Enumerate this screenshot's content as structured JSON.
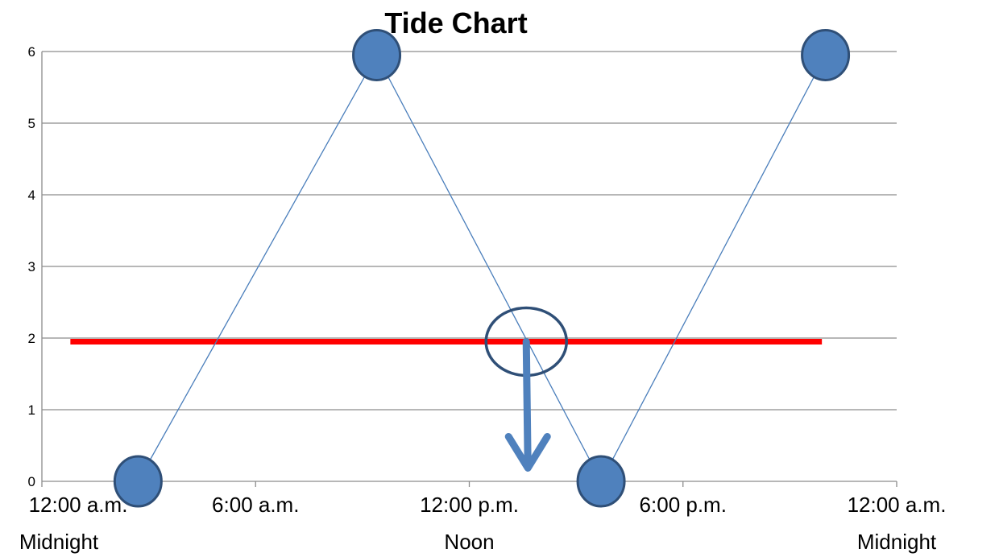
{
  "chart_data": {
    "type": "line",
    "title": "Tide Chart",
    "xlabel": "",
    "ylabel": "",
    "ylim": [
      0,
      6
    ],
    "yticks": [
      "0",
      "1",
      "2",
      "3",
      "4",
      "5",
      "6"
    ],
    "xlim_hours": [
      0,
      24
    ],
    "x_tick_labels": [
      "12:00 a.m.",
      "6:00 a.m.",
      "12:00 p.m.",
      "6:00 p.m.",
      "12:00 a.m."
    ],
    "x_tick_sublabels": [
      "Midnight",
      "",
      "Noon",
      "",
      "Midnight"
    ],
    "grid": true,
    "series": [
      {
        "x_hours": [
          2.7,
          9.4,
          15.7,
          22.0
        ],
        "values": [
          0,
          5.95,
          0,
          5.95
        ],
        "color": "#4f81bd"
      }
    ],
    "threshold": {
      "value": 1.95,
      "x_start_hours": 0.8,
      "x_end_hours": 21.9,
      "color": "#ff0000"
    },
    "highlight": {
      "x_hours": 13.6,
      "y": 1.95,
      "arrow": "down",
      "color": "#2f4f77"
    }
  }
}
